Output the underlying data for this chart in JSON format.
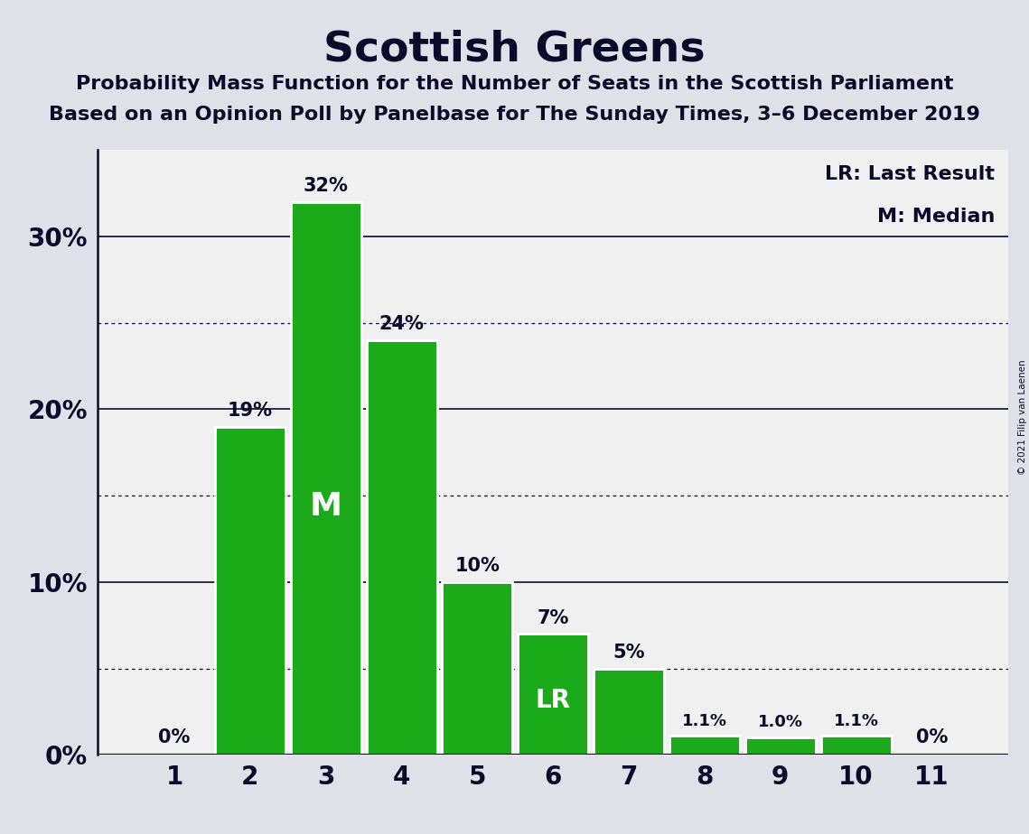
{
  "title": "Scottish Greens",
  "subtitle1": "Probability Mass Function for the Number of Seats in the Scottish Parliament",
  "subtitle2": "Based on an Opinion Poll by Panelbase for The Sunday Times, 3–6 December 2019",
  "copyright": "© 2021 Filip van Laenen",
  "categories": [
    1,
    2,
    3,
    4,
    5,
    6,
    7,
    8,
    9,
    10,
    11
  ],
  "values": [
    0.0,
    19.0,
    32.0,
    24.0,
    10.0,
    7.0,
    5.0,
    1.1,
    1.0,
    1.1,
    0.0
  ],
  "bar_color": "#1aaa1a",
  "figure_background_color": "#e0e0e8",
  "axes_background_color": "#f0f0f0",
  "text_color": "#0a0a2a",
  "bar_labels": [
    "0%",
    "19%",
    "32%",
    "24%",
    "10%",
    "7%",
    "5%",
    "1.1%",
    "1.0%",
    "1.1%",
    "0%"
  ],
  "median_bar": 3,
  "lr_bar": 6,
  "yticks": [
    0,
    10,
    20,
    30
  ],
  "ytick_labels": [
    "0%",
    "10%",
    "20%",
    "30%"
  ],
  "ylim": [
    0,
    35
  ],
  "legend_lr": "LR: Last Result",
  "legend_m": "M: Median",
  "solid_gridlines": [
    10,
    20,
    30
  ],
  "dotted_gridlines": [
    5,
    15,
    25
  ]
}
